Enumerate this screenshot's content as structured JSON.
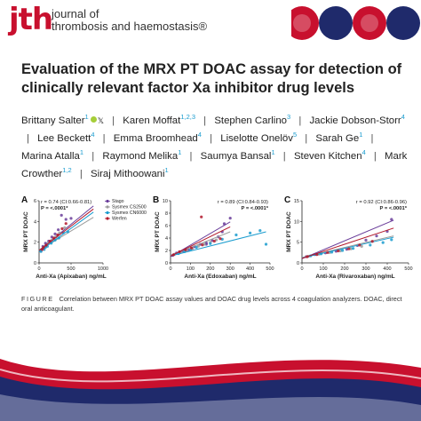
{
  "header": {
    "logo": "jth",
    "journal_line1": "journal of",
    "journal_line2": "thrombosis and haemostasis®",
    "colors": {
      "brand": "#c8102e",
      "navy": "#1f2a6b",
      "accent": "#1a9ccf"
    }
  },
  "title": "Evaluation of the MRX PT DOAC assay for detection of clinically relevant factor Xa inhibitor drug levels",
  "authors": [
    {
      "name": "Brittany Salter",
      "aff": "1",
      "orcid": true
    },
    {
      "name": "Karen Moffat",
      "aff": "1,2,3"
    },
    {
      "name": "Stephen Carlino",
      "aff": "3"
    },
    {
      "name": "Jackie Dobson-Storr",
      "aff": "4"
    },
    {
      "name": "Lee Beckett",
      "aff": "4"
    },
    {
      "name": "Emma Broomhead",
      "aff": "4"
    },
    {
      "name": "Liselotte Onelöv",
      "aff": "5"
    },
    {
      "name": "Sarah Ge",
      "aff": "1"
    },
    {
      "name": "Marina Atalla",
      "aff": "1"
    },
    {
      "name": "Raymond Melika",
      "aff": "1"
    },
    {
      "name": "Saumya Bansal",
      "aff": "1"
    },
    {
      "name": "Steven Kitchen",
      "aff": "4"
    },
    {
      "name": "Mark Crowther",
      "aff": "1,2"
    },
    {
      "name": "Siraj Mithoowani",
      "aff": "1"
    }
  ],
  "caption": {
    "label": "FIGURE",
    "text": "Correlation between MRX PT DOAC assay values and DOAC drug levels across 4 coagulation analyzers. DOAC, direct oral anticoagulant."
  },
  "chart_data": [
    {
      "panel": "A",
      "type": "scatter",
      "xlabel": "Anti-Xa (Apixaban) ng/mL",
      "ylabel": "MRX PT DOAC",
      "xlim": [
        0,
        1000
      ],
      "ylim": [
        0,
        6
      ],
      "xticks": [
        0,
        500,
        1000
      ],
      "yticks": [
        0,
        2,
        4,
        6
      ],
      "stat_r": "r = 0.74 (CI:0.66-0.81)",
      "stat_p": "P = <.0001*",
      "legend": [
        "Stago",
        "Sysmex CS2500",
        "Sysmex CN6000",
        "Werfen"
      ],
      "series": [
        {
          "name": "Stago",
          "color": "#6a3d9a",
          "points": [
            [
              30,
              1.2
            ],
            [
              60,
              1.6
            ],
            [
              100,
              1.9
            ],
            [
              150,
              2.1
            ],
            [
              200,
              2.5
            ],
            [
              250,
              2.8
            ],
            [
              300,
              3.2
            ],
            [
              350,
              4.6
            ],
            [
              420,
              4.2
            ],
            [
              500,
              4.3
            ],
            [
              120,
              1.8
            ],
            [
              80,
              1.5
            ]
          ],
          "fit": [
            [
              0,
              1.2
            ],
            [
              850,
              5.5
            ]
          ]
        },
        {
          "name": "Sysmex CS2500",
          "color": "#9b9b9b",
          "points": [
            [
              40,
              1.3
            ],
            [
              90,
              1.6
            ],
            [
              140,
              1.9
            ],
            [
              200,
              2.2
            ],
            [
              260,
              2.5
            ],
            [
              320,
              2.9
            ],
            [
              400,
              3.4
            ],
            [
              180,
              2.0
            ],
            [
              60,
              1.4
            ]
          ],
          "fit": [
            [
              0,
              1.2
            ],
            [
              850,
              4.4
            ]
          ]
        },
        {
          "name": "Sysmex CN6000",
          "color": "#1a9ccf",
          "points": [
            [
              30,
              1.1
            ],
            [
              80,
              1.3
            ],
            [
              130,
              1.6
            ],
            [
              190,
              1.9
            ],
            [
              250,
              2.2
            ],
            [
              310,
              2.4
            ],
            [
              380,
              2.9
            ],
            [
              450,
              3.0
            ],
            [
              100,
              1.5
            ]
          ],
          "fit": [
            [
              0,
              1.1
            ],
            [
              850,
              4.9
            ]
          ]
        },
        {
          "name": "Werfen",
          "color": "#b2182b",
          "points": [
            [
              50,
              1.3
            ],
            [
              110,
              1.7
            ],
            [
              170,
              2.1
            ],
            [
              230,
              2.4
            ],
            [
              290,
              2.7
            ],
            [
              360,
              3.3
            ],
            [
              420,
              3.8
            ],
            [
              70,
              1.5
            ]
          ],
          "fit": [
            [
              0,
              1.2
            ],
            [
              850,
              5.2
            ]
          ]
        }
      ]
    },
    {
      "panel": "B",
      "type": "scatter",
      "xlabel": "Anti-Xa (Edoxaban) ng/mL",
      "ylabel": "MRX PT DOAC",
      "xlim": [
        0,
        500
      ],
      "ylim": [
        0,
        10
      ],
      "xticks": [
        0,
        100,
        200,
        300,
        400,
        500
      ],
      "yticks": [
        0,
        2,
        4,
        6,
        8,
        10
      ],
      "stat_r": "r = 0.89 (CI:0.84-0.93)",
      "stat_p": "P = <.0001*",
      "series": [
        {
          "name": "",
          "color": "#6a3d9a",
          "points": [
            [
              10,
              1.2
            ],
            [
              30,
              1.6
            ],
            [
              60,
              1.9
            ],
            [
              90,
              2.1
            ],
            [
              120,
              2.6
            ],
            [
              150,
              3.0
            ],
            [
              180,
              3.2
            ],
            [
              210,
              3.6
            ],
            [
              240,
              4.2
            ],
            [
              260,
              5.0
            ],
            [
              270,
              6.3
            ],
            [
              300,
              7.2
            ],
            [
              180,
              3.0
            ]
          ],
          "fit": [
            [
              0,
              1.0
            ],
            [
              300,
              6.6
            ]
          ]
        },
        {
          "name": "",
          "color": "#9b9b9b",
          "points": [
            [
              20,
              1.4
            ],
            [
              50,
              1.7
            ],
            [
              80,
              2.0
            ],
            [
              110,
              2.3
            ],
            [
              140,
              2.7
            ],
            [
              170,
              3.0
            ],
            [
              200,
              3.3
            ],
            [
              230,
              3.7
            ]
          ],
          "fit": [
            [
              0,
              1.2
            ],
            [
              300,
              5.0
            ]
          ]
        },
        {
          "name": "",
          "color": "#1a9ccf",
          "points": [
            [
              40,
              1.5
            ],
            [
              70,
              1.8
            ],
            [
              100,
              2.1
            ],
            [
              130,
              2.5
            ],
            [
              200,
              3.1
            ],
            [
              260,
              3.8
            ],
            [
              330,
              4.5
            ],
            [
              400,
              4.8
            ],
            [
              450,
              5.2
            ],
            [
              480,
              3.0
            ]
          ],
          "fit": [
            [
              0,
              1.1
            ],
            [
              480,
              5.0
            ]
          ]
        },
        {
          "name": "",
          "color": "#b2182b",
          "points": [
            [
              15,
              1.3
            ],
            [
              45,
              1.8
            ],
            [
              75,
              2.1
            ],
            [
              105,
              2.4
            ],
            [
              160,
              2.9
            ],
            [
              220,
              3.5
            ],
            [
              250,
              3.9
            ],
            [
              155,
              7.4
            ]
          ],
          "fit": [
            [
              0,
              1.1
            ],
            [
              300,
              5.8
            ]
          ]
        }
      ]
    },
    {
      "panel": "C",
      "type": "scatter",
      "xlabel": "Anti-Xa (Rivaroxaban) ng/mL",
      "ylabel": "MRX PT DOAC",
      "xlim": [
        0,
        500
      ],
      "ylim": [
        0,
        15
      ],
      "xticks": [
        0,
        100,
        200,
        300,
        400,
        500
      ],
      "yticks": [
        0,
        5,
        10,
        15
      ],
      "stat_r": "r = 0.92 (CI:0.86-0.96)",
      "stat_p": "P = <.0001*",
      "series": [
        {
          "name": "",
          "color": "#6a3d9a",
          "points": [
            [
              20,
              1.5
            ],
            [
              60,
              2.0
            ],
            [
              110,
              2.4
            ],
            [
              160,
              2.8
            ],
            [
              210,
              3.3
            ],
            [
              260,
              4.2
            ],
            [
              300,
              5.5
            ],
            [
              350,
              6.5
            ],
            [
              400,
              7.6
            ],
            [
              420,
              10.5
            ]
          ],
          "fit": [
            [
              0,
              1.0
            ],
            [
              430,
              10.3
            ]
          ]
        },
        {
          "name": "",
          "color": "#9b9b9b",
          "points": [
            [
              30,
              1.6
            ],
            [
              80,
              2.1
            ],
            [
              130,
              2.5
            ],
            [
              180,
              2.9
            ],
            [
              230,
              3.4
            ],
            [
              280,
              4.0
            ]
          ],
          "fit": [
            [
              0,
              1.3
            ],
            [
              430,
              6.5
            ]
          ]
        },
        {
          "name": "",
          "color": "#1a9ccf",
          "points": [
            [
              40,
              1.7
            ],
            [
              90,
              2.2
            ],
            [
              140,
              2.6
            ],
            [
              190,
              3.0
            ],
            [
              240,
              3.5
            ],
            [
              320,
              4.3
            ],
            [
              380,
              4.9
            ],
            [
              420,
              5.6
            ]
          ],
          "fit": [
            [
              0,
              1.2
            ],
            [
              430,
              6.2
            ]
          ]
        },
        {
          "name": "",
          "color": "#b2182b",
          "points": [
            [
              25,
              1.5
            ],
            [
              70,
              2.0
            ],
            [
              120,
              2.5
            ],
            [
              170,
              2.9
            ],
            [
              220,
              3.4
            ],
            [
              270,
              4.3
            ],
            [
              330,
              5.2
            ]
          ],
          "fit": [
            [
              0,
              1.1
            ],
            [
              430,
              8.4
            ]
          ]
        }
      ]
    }
  ]
}
